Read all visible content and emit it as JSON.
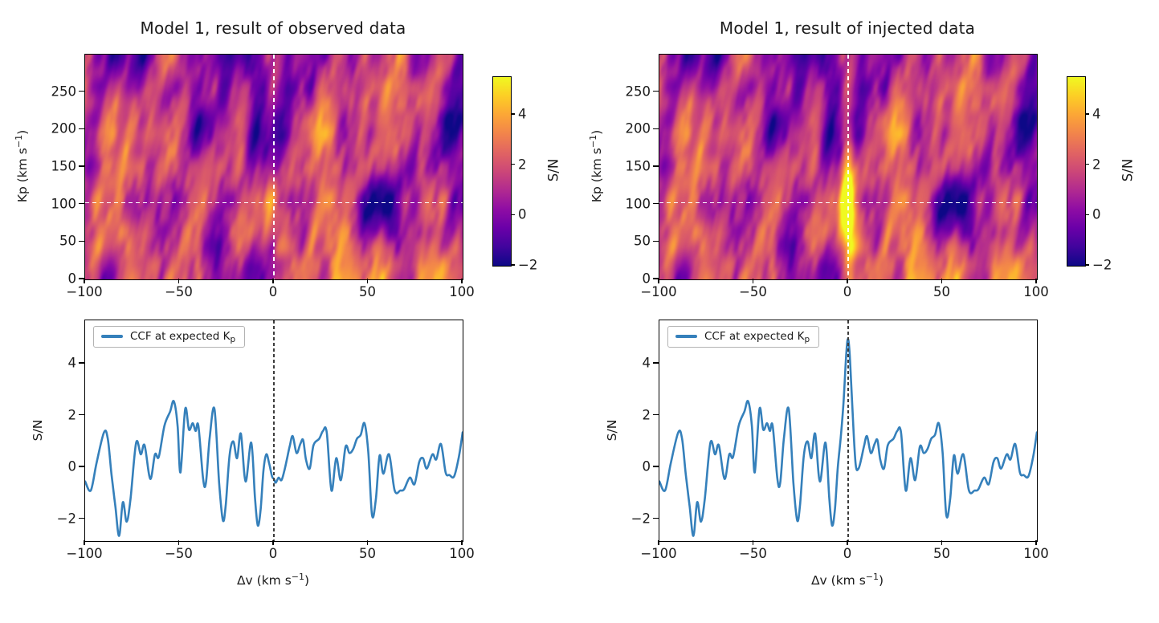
{
  "text": {
    "title_left": "Model 1, result of observed data",
    "title_right": "Model 1, result of injected data",
    "sn_label": "S/N",
    "kp_axis_label_parts": [
      {
        "t": "Kp (km s"
      },
      {
        "t": "−1",
        "sup": true
      },
      {
        "t": ")"
      }
    ],
    "dv_axis_label_parts": [
      {
        "t": "Δv (km s"
      },
      {
        "t": "−1",
        "sup": true
      },
      {
        "t": ")"
      }
    ],
    "legend_label_parts": [
      {
        "t": "CCF at expected K"
      },
      {
        "t": "p",
        "sub": true
      }
    ]
  },
  "axes": {
    "dv_ticks": {
      "values": [
        -100,
        -50,
        0,
        50,
        100
      ],
      "labels": [
        "−100",
        "−50",
        "0",
        "50",
        "100"
      ]
    },
    "kp_ticks": {
      "values": [
        0,
        50,
        100,
        150,
        200,
        250
      ],
      "labels": [
        "0",
        "50",
        "100",
        "150",
        "200",
        "250"
      ]
    },
    "sn_line_ticks": {
      "values": [
        4,
        2,
        0,
        -2
      ],
      "labels": [
        "4",
        "2",
        "0",
        "−2"
      ]
    },
    "colorbar_ticks": {
      "values": [
        4,
        2,
        0,
        -2
      ],
      "labels": [
        "4",
        "2",
        "0",
        "−2"
      ]
    },
    "dv_lim": [
      -100,
      100
    ],
    "kp_lim": [
      0,
      300
    ],
    "sn_line_lim": [
      -2.85,
      5.67
    ],
    "colorbar_range": [
      -2,
      5.5
    ]
  },
  "style": {
    "background": "#ffffff",
    "line_color": "#3580bb",
    "crosshair_color": "#ffffff",
    "vline_color": "#3d3d3d",
    "axis_color": "#000000",
    "text_color": "#1a1a1a",
    "legend_border": "#b3b3b3",
    "plasma_stops": [
      [
        0.0,
        "#0d0887"
      ],
      [
        0.1,
        "#41049d"
      ],
      [
        0.2,
        "#6a00a8"
      ],
      [
        0.3,
        "#8f0da4"
      ],
      [
        0.4,
        "#b12a90"
      ],
      [
        0.5,
        "#cc4778"
      ],
      [
        0.6,
        "#e16462"
      ],
      [
        0.7,
        "#f2844b"
      ],
      [
        0.8,
        "#fca636"
      ],
      [
        0.9,
        "#fcce25"
      ],
      [
        1.0,
        "#f0f921"
      ]
    ]
  },
  "chart_data": [
    {
      "id": "heatmap_observed",
      "type": "heatmap",
      "title": "Model 1, result of observed data",
      "xlabel_ticks": [
        -100,
        -50,
        0,
        50,
        100
      ],
      "ylabel": "Kp (km s−1)",
      "xlim": [
        -100,
        100
      ],
      "ylim": [
        0,
        300
      ],
      "colormap": "plasma",
      "colorbar_label": "S/N",
      "colorbar_ticks": [
        4,
        2,
        0,
        -2
      ],
      "value_range": [
        -2,
        5.5
      ],
      "content": "smooth vertically-streaked cross-correlation noise field, S/N mostly between -2 and 4.5, no coherent signal",
      "crosshair": {
        "dv": 0,
        "kp": 102
      },
      "injected_signal": null,
      "seed": 3
    },
    {
      "id": "heatmap_injected",
      "type": "heatmap",
      "title": "Model 1, result of injected data",
      "xlabel_ticks": [
        -100,
        -50,
        0,
        50,
        100
      ],
      "ylabel": "Kp (km s−1)",
      "xlim": [
        -100,
        100
      ],
      "ylim": [
        0,
        300
      ],
      "colormap": "plasma",
      "colorbar_label": "S/N",
      "colorbar_ticks": [
        4,
        2,
        0,
        -2
      ],
      "value_range": [
        -2,
        5.5
      ],
      "content": "same noise field as observed panel plus bright injected signal column at Δv = 0 centred on Kp ≈ 102",
      "crosshair": {
        "dv": 0,
        "kp": 102
      },
      "injected_signal": {
        "dv": 0,
        "kp": 102,
        "amplitude": 5.3,
        "sigma_dv": 2.6,
        "sigma_kp": 75
      },
      "seed": 3
    },
    {
      "id": "ccf_observed",
      "type": "line",
      "legend": "CCF at expected Kp",
      "xlabel": "Δv (km s−1)",
      "ylabel": "S/N",
      "xlim": [
        -100,
        100
      ],
      "ylim": [
        -2.85,
        5.67
      ],
      "vline_x": 0,
      "x": [
        -100,
        -97,
        -94,
        -90,
        -88,
        -86,
        -84,
        -82,
        -80,
        -78,
        -76,
        -73,
        -70.5,
        -68.5,
        -65.5,
        -63,
        -61,
        -58,
        -55,
        -53,
        -51,
        -49.5,
        -47,
        -45,
        -43,
        -41.5,
        -40,
        -37.5,
        -36,
        -34,
        -31.5,
        -29,
        -27,
        -25.5,
        -23.5,
        -21.5,
        -19.5,
        -17.5,
        -15,
        -12,
        -10,
        -8.5,
        -7,
        -5.5,
        -4,
        -2.5,
        -1,
        0,
        1,
        2.5,
        4,
        5.5,
        7,
        8.5,
        10,
        12,
        14,
        15.5,
        17,
        19,
        21,
        24,
        26,
        28,
        30.5,
        33,
        35.5,
        38,
        40,
        42,
        44,
        46,
        48,
        50,
        52,
        54,
        56,
        58,
        61,
        64,
        67,
        69,
        72,
        74.5,
        77,
        79,
        81,
        84,
        86,
        88.5,
        91,
        93,
        95.5,
        98,
        100
      ],
      "y": [
        -0.55,
        -0.9,
        0.15,
        1.35,
        1.1,
        -0.3,
        -1.5,
        -2.65,
        -1.35,
        -2.1,
        -1.25,
        0.95,
        0.5,
        0.85,
        -0.45,
        0.5,
        0.4,
        1.6,
        2.15,
        2.55,
        1.6,
        -0.2,
        2.25,
        1.45,
        1.7,
        1.4,
        1.6,
        -0.45,
        -0.6,
        1.15,
        2.25,
        -0.6,
        -2.05,
        -1.45,
        0.45,
        1.0,
        0.35,
        1.3,
        -0.55,
        0.95,
        -1.2,
        -2.25,
        -1.6,
        -0.1,
        0.5,
        0.15,
        -0.35,
        -0.45,
        -0.6,
        -0.4,
        -0.5,
        -0.15,
        0.35,
        0.85,
        1.2,
        0.55,
        0.9,
        1.05,
        0.3,
        -0.05,
        0.85,
        1.1,
        1.4,
        1.35,
        -0.9,
        0.35,
        -0.5,
        0.8,
        0.55,
        0.7,
        1.1,
        1.25,
        1.7,
        0.6,
        -1.85,
        -1.25,
        0.45,
        -0.25,
        0.5,
        -0.9,
        -0.9,
        -0.85,
        -0.4,
        -0.65,
        0.2,
        0.35,
        -0.05,
        0.5,
        0.3,
        0.9,
        -0.2,
        -0.3,
        -0.35,
        0.4,
        1.35
      ]
    },
    {
      "id": "ccf_injected",
      "type": "line",
      "legend": "CCF at expected Kp",
      "xlabel": "Δv (km s−1)",
      "ylabel": "S/N",
      "xlim": [
        -100,
        100
      ],
      "ylim": [
        -2.85,
        5.67
      ],
      "vline_x": 0,
      "peak": {
        "center": 0,
        "height": 4.95,
        "sigma": 1.9
      },
      "x": [
        -100,
        -97,
        -94,
        -90,
        -88,
        -86,
        -84,
        -82,
        -80,
        -78,
        -76,
        -73,
        -70.5,
        -68.5,
        -65.5,
        -63,
        -61,
        -58,
        -55,
        -53,
        -51,
        -49.5,
        -47,
        -45,
        -43,
        -41.5,
        -40,
        -37.5,
        -36,
        -34,
        -31.5,
        -29,
        -27,
        -25.5,
        -23.5,
        -21.5,
        -19.5,
        -17.5,
        -15,
        -12,
        -10,
        -8.5,
        -7,
        -5.5,
        -4,
        -2.5,
        -1,
        0,
        1,
        2.5,
        4,
        5.5,
        7,
        8.5,
        10,
        12,
        14,
        15.5,
        17,
        19,
        21,
        24,
        26,
        28,
        30.5,
        33,
        35.5,
        38,
        40,
        42,
        44,
        46,
        48,
        50,
        52,
        54,
        56,
        58,
        61,
        64,
        67,
        69,
        72,
        74.5,
        77,
        79,
        81,
        84,
        86,
        88.5,
        91,
        93,
        95.5,
        98,
        100
      ],
      "y": [
        -0.55,
        -0.9,
        0.15,
        1.35,
        1.1,
        -0.3,
        -1.5,
        -2.65,
        -1.35,
        -2.1,
        -1.25,
        0.95,
        0.5,
        0.85,
        -0.45,
        0.5,
        0.4,
        1.6,
        2.15,
        2.55,
        1.6,
        -0.2,
        2.25,
        1.45,
        1.7,
        1.4,
        1.6,
        -0.45,
        -0.6,
        1.15,
        2.25,
        -0.6,
        -2.05,
        -1.45,
        0.45,
        1.0,
        0.35,
        1.3,
        -0.55,
        0.95,
        -1.2,
        -2.25,
        -1.6,
        0.0,
        1.1,
        2.45,
        4.4,
        4.95,
        4.15,
        1.9,
        0.1,
        -0.05,
        0.35,
        0.85,
        1.2,
        0.55,
        0.9,
        1.05,
        0.3,
        -0.05,
        0.85,
        1.1,
        1.4,
        1.35,
        -0.9,
        0.35,
        -0.5,
        0.8,
        0.55,
        0.7,
        1.1,
        1.25,
        1.7,
        0.6,
        -1.85,
        -1.25,
        0.45,
        -0.25,
        0.5,
        -0.9,
        -0.9,
        -0.85,
        -0.4,
        -0.65,
        0.2,
        0.35,
        -0.05,
        0.5,
        0.3,
        0.9,
        -0.2,
        -0.3,
        -0.35,
        0.4,
        1.35
      ]
    }
  ]
}
